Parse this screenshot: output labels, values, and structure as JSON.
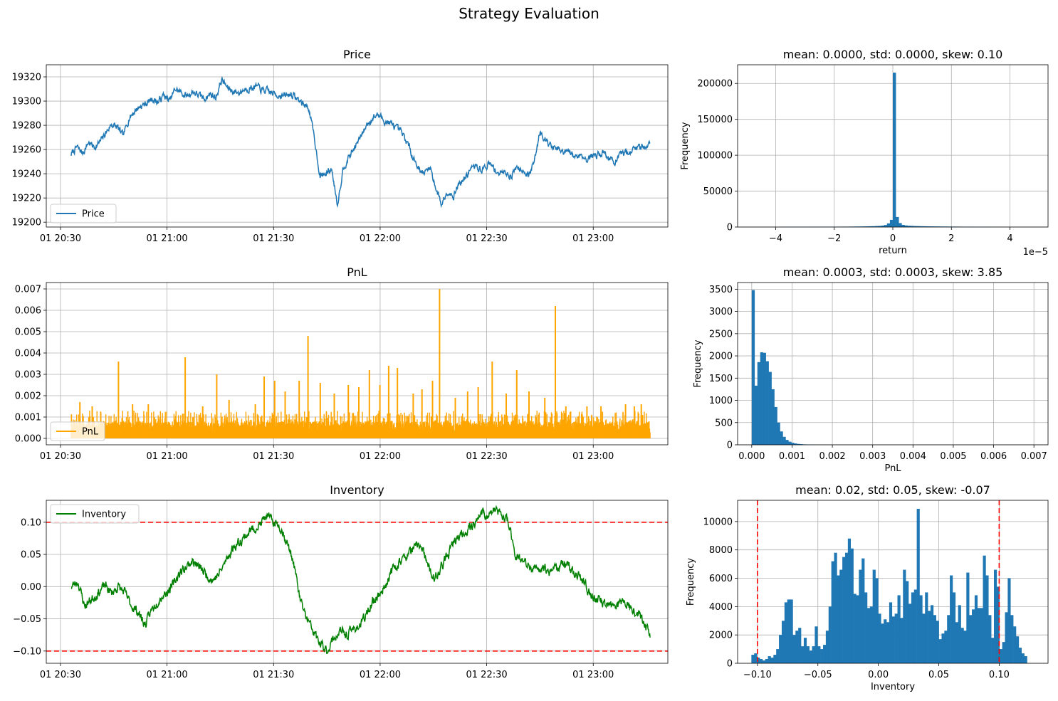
{
  "figure": {
    "title": "Strategy Evaluation"
  },
  "colors": {
    "price": "#1f77b4",
    "pnl": "#ffa500",
    "inventory": "#008000",
    "hist": "#1f77b4",
    "limit": "#ff0000",
    "grid": "#b0b0b0"
  },
  "chart_data": [
    {
      "id": "price",
      "type": "line",
      "title": "Price",
      "legend": {
        "label": "Price",
        "loc": "lower-left"
      },
      "x_start": "01 20:33",
      "x_end": "01 23:16",
      "x_range": [
        "01 20:26",
        "01 23:21"
      ],
      "x_ticks": [
        "01 20:30",
        "01 21:00",
        "01 21:30",
        "01 22:00",
        "01 22:30",
        "01 23:00"
      ],
      "ylim": [
        19196,
        19330
      ],
      "y_ticks": [
        "19200",
        "19220",
        "19240",
        "19260",
        "19280",
        "19300",
        "19320"
      ],
      "grid": true,
      "profile": [
        [
          0,
          19256
        ],
        [
          1,
          19262
        ],
        [
          2,
          19257
        ],
        [
          3,
          19266
        ],
        [
          4,
          19262
        ],
        [
          5,
          19266
        ],
        [
          6,
          19274
        ],
        [
          7,
          19281
        ],
        [
          8,
          19278
        ],
        [
          9,
          19271
        ],
        [
          10,
          19286
        ],
        [
          11,
          19292
        ],
        [
          12,
          19296
        ],
        [
          13,
          19298
        ],
        [
          14,
          19302
        ],
        [
          15,
          19299
        ],
        [
          16,
          19305
        ],
        [
          17,
          19300
        ],
        [
          18,
          19310
        ],
        [
          19,
          19307
        ],
        [
          20,
          19304
        ],
        [
          21,
          19308
        ],
        [
          22,
          19305
        ],
        [
          23,
          19302
        ],
        [
          24,
          19306
        ],
        [
          25,
          19303
        ],
        [
          26,
          19318
        ],
        [
          27,
          19311
        ],
        [
          28,
          19308
        ],
        [
          29,
          19307
        ],
        [
          30,
          19310
        ],
        [
          31,
          19311
        ],
        [
          32,
          19312
        ],
        [
          33,
          19309
        ],
        [
          34,
          19308
        ],
        [
          35,
          19306
        ],
        [
          36,
          19305
        ],
        [
          37,
          19304
        ],
        [
          38,
          19306
        ],
        [
          39,
          19302
        ],
        [
          40,
          19298
        ],
        [
          41,
          19295
        ],
        [
          42,
          19270
        ],
        [
          43,
          19238
        ],
        [
          44,
          19240
        ],
        [
          45,
          19244
        ],
        [
          46,
          19215
        ],
        [
          47,
          19245
        ],
        [
          48,
          19254
        ],
        [
          49,
          19262
        ],
        [
          50,
          19270
        ],
        [
          51,
          19280
        ],
        [
          52,
          19286
        ],
        [
          53,
          19289
        ],
        [
          54,
          19284
        ],
        [
          55,
          19282
        ],
        [
          56,
          19278
        ],
        [
          57,
          19274
        ],
        [
          58,
          19266
        ],
        [
          59,
          19255
        ],
        [
          60,
          19245
        ],
        [
          61,
          19240
        ],
        [
          62,
          19246
        ],
        [
          63,
          19228
        ],
        [
          64,
          19215
        ],
        [
          65,
          19226
        ],
        [
          66,
          19222
        ],
        [
          67,
          19232
        ],
        [
          68,
          19236
        ],
        [
          69,
          19244
        ],
        [
          70,
          19246
        ],
        [
          71,
          19243
        ],
        [
          72,
          19248
        ],
        [
          73,
          19245
        ],
        [
          74,
          19240
        ],
        [
          75,
          19242
        ],
        [
          76,
          19238
        ],
        [
          77,
          19246
        ],
        [
          78,
          19244
        ],
        [
          79,
          19238
        ],
        [
          80,
          19250
        ],
        [
          81,
          19276
        ],
        [
          82,
          19268
        ],
        [
          83,
          19262
        ],
        [
          84,
          19260
        ],
        [
          85,
          19257
        ],
        [
          86,
          19258
        ],
        [
          87,
          19254
        ],
        [
          88,
          19256
        ],
        [
          89,
          19252
        ],
        [
          90,
          19255
        ],
        [
          91,
          19256
        ],
        [
          92,
          19258
        ],
        [
          93,
          19252
        ],
        [
          94,
          19250
        ],
        [
          95,
          19255
        ],
        [
          96,
          19258
        ],
        [
          97,
          19260
        ],
        [
          98,
          19262
        ],
        [
          99,
          19263
        ],
        [
          100,
          19265
        ]
      ]
    },
    {
      "id": "return_hist",
      "type": "bar",
      "title": "mean: 0.0000, std: 0.0000, skew: 0.10",
      "xlabel": "return",
      "ylabel": "Frequency",
      "x_offset_text": "1e−5",
      "xlim": [
        -5.3,
        5.3
      ],
      "x_ticks": [
        "−4",
        "−2",
        "0",
        "2",
        "4"
      ],
      "ylim": [
        0,
        226000
      ],
      "y_ticks": [
        "0",
        "50000",
        "100000",
        "150000",
        "200000"
      ],
      "grid": true,
      "bin_range": [
        -5.0,
        5.0
      ],
      "values": [
        50,
        50,
        50,
        50,
        50,
        50,
        50,
        50,
        50,
        50,
        100,
        200,
        300,
        300,
        300,
        350,
        350,
        350,
        350,
        350,
        400,
        400,
        400,
        400,
        400,
        450,
        450,
        500,
        500,
        500,
        500,
        500,
        550,
        550,
        550,
        600,
        650,
        700,
        750,
        800,
        900,
        1000,
        1100,
        1200,
        1400,
        1600,
        2000,
        2800,
        5000,
        10000,
        215000,
        14000,
        5500,
        3000,
        2200,
        1800,
        1600,
        1400,
        1300,
        1200,
        1100,
        1000,
        950,
        900,
        850,
        800,
        750,
        700,
        700,
        650,
        600,
        600,
        550,
        500,
        500,
        450,
        450,
        400,
        400,
        350,
        350,
        300,
        300,
        250,
        250,
        200,
        200,
        150,
        150,
        100,
        100,
        80,
        60,
        40,
        30,
        20,
        10,
        10,
        10,
        10
      ]
    },
    {
      "id": "pnl",
      "type": "line",
      "title": "PnL",
      "legend": {
        "label": "PnL",
        "loc": "lower-left"
      },
      "x_start": "01 20:33",
      "x_end": "01 23:16",
      "x_range": [
        "01 20:26",
        "01 23:21"
      ],
      "x_ticks": [
        "01 20:30",
        "01 21:00",
        "01 21:30",
        "01 22:00",
        "01 22:30",
        "01 23:00"
      ],
      "ylim": [
        -0.0003,
        0.0073
      ],
      "y_ticks": [
        "0.000",
        "0.001",
        "0.002",
        "0.003",
        "0.004",
        "0.005",
        "0.006",
        "0.007"
      ],
      "grid": true,
      "spikes": [
        [
          5,
          0.0017
        ],
        [
          12,
          0.0015
        ],
        [
          27,
          0.0036
        ],
        [
          35,
          0.0016
        ],
        [
          44,
          0.0016
        ],
        [
          65,
          0.0038
        ],
        [
          75,
          0.0015
        ],
        [
          83,
          0.003
        ],
        [
          90,
          0.0018
        ],
        [
          105,
          0.0016
        ],
        [
          110,
          0.0029
        ],
        [
          116,
          0.0027
        ],
        [
          122,
          0.0022
        ],
        [
          130,
          0.0027
        ],
        [
          135,
          0.0048
        ],
        [
          142,
          0.0026
        ],
        [
          150,
          0.0021
        ],
        [
          158,
          0.0025
        ],
        [
          164,
          0.0024
        ],
        [
          170,
          0.0032
        ],
        [
          176,
          0.0025
        ],
        [
          181,
          0.0034
        ],
        [
          186,
          0.0033
        ],
        [
          195,
          0.0021
        ],
        [
          200,
          0.0023
        ],
        [
          206,
          0.0027
        ],
        [
          210,
          0.007
        ],
        [
          219,
          0.0019
        ],
        [
          226,
          0.0022
        ],
        [
          232,
          0.0024
        ],
        [
          240,
          0.0036
        ],
        [
          248,
          0.0021
        ],
        [
          254,
          0.0032
        ],
        [
          261,
          0.0022
        ],
        [
          270,
          0.0019
        ],
        [
          276,
          0.0062
        ],
        [
          282,
          0.0015
        ],
        [
          294,
          0.0015
        ],
        [
          302,
          0.0015
        ],
        [
          316,
          0.0016
        ],
        [
          321,
          0.0015
        ],
        [
          325,
          0.0016
        ]
      ]
    },
    {
      "id": "pnl_hist",
      "type": "bar",
      "title": "mean: 0.0003, std: 0.0003, skew: 3.85",
      "xlabel": "PnL",
      "ylabel": "Frequency",
      "xlim": [
        -0.00035,
        0.00735
      ],
      "x_ticks": [
        "0.000",
        "0.001",
        "0.002",
        "0.003",
        "0.004",
        "0.005",
        "0.006",
        "0.007"
      ],
      "ylim": [
        0,
        3650
      ],
      "y_ticks": [
        "0",
        "500",
        "1000",
        "1500",
        "2000",
        "2500",
        "3000",
        "3500"
      ],
      "grid": true,
      "bin_range": [
        0.0,
        0.007
      ],
      "values": [
        3480,
        1330,
        1860,
        2080,
        2070,
        1880,
        1640,
        1250,
        850,
        500,
        300,
        180,
        110,
        70,
        45,
        30,
        20,
        15,
        10,
        8,
        6,
        5,
        4,
        3,
        3,
        2,
        2,
        2,
        1,
        1,
        1,
        1,
        1,
        1,
        1,
        1,
        1,
        1,
        1,
        1,
        1,
        1,
        1,
        1,
        1,
        1,
        1,
        1,
        1,
        1,
        1,
        1,
        1,
        1,
        1,
        1,
        1,
        1,
        1,
        1,
        1,
        1,
        1,
        1,
        1,
        1,
        1,
        1,
        1,
        1,
        1,
        1,
        1,
        1,
        1,
        1,
        1,
        1,
        1,
        1,
        1,
        1,
        1,
        1,
        1,
        1,
        1,
        1,
        1,
        1,
        1,
        1,
        1,
        1,
        1,
        1,
        1,
        1,
        1,
        1
      ]
    },
    {
      "id": "inventory",
      "type": "line",
      "title": "Inventory",
      "legend": {
        "label": "Inventory",
        "loc": "upper-left"
      },
      "x_start": "01 20:33",
      "x_end": "01 23:16",
      "x_range": [
        "01 20:26",
        "01 23:21"
      ],
      "x_ticks": [
        "01 20:30",
        "01 21:00",
        "01 21:30",
        "01 22:00",
        "01 22:30",
        "01 23:00"
      ],
      "ylim": [
        -0.119,
        0.134
      ],
      "y_ticks": [
        "−0.10",
        "−0.05",
        "0.00",
        "0.05",
        "0.10"
      ],
      "grid": true,
      "limits": [
        -0.1,
        0.1
      ],
      "profile": [
        [
          0,
          0.0
        ],
        [
          1,
          0.008
        ],
        [
          2,
          -0.03
        ],
        [
          3,
          -0.02
        ],
        [
          4,
          -0.01
        ],
        [
          5,
          0.002
        ],
        [
          6,
          -0.01
        ],
        [
          7,
          0.0
        ],
        [
          8,
          -0.01
        ],
        [
          9,
          -0.03
        ],
        [
          10,
          -0.04
        ],
        [
          11,
          -0.06
        ],
        [
          12,
          -0.035
        ],
        [
          13,
          -0.02
        ],
        [
          14,
          -0.01
        ],
        [
          15,
          0.0
        ],
        [
          16,
          0.02
        ],
        [
          17,
          0.03
        ],
        [
          18,
          0.04
        ],
        [
          19,
          0.03
        ],
        [
          20,
          0.02
        ],
        [
          21,
          0.01
        ],
        [
          22,
          0.02
        ],
        [
          23,
          0.04
        ],
        [
          24,
          0.06
        ],
        [
          25,
          0.07
        ],
        [
          26,
          0.08
        ],
        [
          27,
          0.09
        ],
        [
          28,
          0.095
        ],
        [
          29,
          0.11
        ],
        [
          30,
          0.1
        ],
        [
          31,
          0.095
        ],
        [
          32,
          0.07
        ],
        [
          33,
          0.04
        ],
        [
          34,
          -0.02
        ],
        [
          35,
          -0.05
        ],
        [
          36,
          -0.07
        ],
        [
          37,
          -0.09
        ],
        [
          38,
          -0.1
        ],
        [
          39,
          -0.08
        ],
        [
          40,
          -0.07
        ],
        [
          41,
          -0.075
        ],
        [
          42,
          -0.065
        ],
        [
          43,
          -0.06
        ],
        [
          44,
          -0.04
        ],
        [
          45,
          -0.02
        ],
        [
          46,
          -0.01
        ],
        [
          47,
          0.01
        ],
        [
          48,
          0.03
        ],
        [
          49,
          0.04
        ],
        [
          50,
          0.05
        ],
        [
          51,
          0.06
        ],
        [
          52,
          0.065
        ],
        [
          53,
          0.03
        ],
        [
          54,
          0.01
        ],
        [
          55,
          0.03
        ],
        [
          56,
          0.05
        ],
        [
          57,
          0.07
        ],
        [
          58,
          0.08
        ],
        [
          59,
          0.09
        ],
        [
          60,
          0.1
        ],
        [
          61,
          0.115
        ],
        [
          62,
          0.11
        ],
        [
          63,
          0.12
        ],
        [
          64,
          0.11
        ],
        [
          65,
          0.1
        ],
        [
          66,
          0.05
        ],
        [
          67,
          0.04
        ],
        [
          68,
          0.03
        ],
        [
          69,
          0.025
        ],
        [
          70,
          0.03
        ],
        [
          71,
          0.025
        ],
        [
          72,
          0.03
        ],
        [
          73,
          0.035
        ],
        [
          74,
          0.03
        ],
        [
          75,
          0.02
        ],
        [
          76,
          0.01
        ],
        [
          77,
          -0.01
        ],
        [
          78,
          -0.02
        ],
        [
          79,
          -0.025
        ],
        [
          80,
          -0.03
        ],
        [
          81,
          -0.03
        ],
        [
          82,
          -0.02
        ],
        [
          83,
          -0.03
        ],
        [
          84,
          -0.04
        ],
        [
          85,
          -0.05
        ],
        [
          86,
          -0.075
        ]
      ]
    },
    {
      "id": "inventory_hist",
      "type": "bar",
      "title": "mean: 0.02, std: 0.05, skew: -0.07",
      "xlabel": "Inventory",
      "ylabel": "Frequency",
      "xlim": [
        -0.1164,
        0.1404
      ],
      "x_ticks": [
        "−0.10",
        "−0.05",
        "0.00",
        "0.05",
        "0.10"
      ],
      "ylim": [
        0,
        11500
      ],
      "y_ticks": [
        "0",
        "2000",
        "4000",
        "6000",
        "8000",
        "10000"
      ],
      "grid": true,
      "limits": [
        -0.1,
        0.1
      ],
      "bin_range": [
        -0.105,
        0.123
      ],
      "values": [
        600,
        700,
        400,
        300,
        200,
        300,
        500,
        400,
        600,
        1000,
        2000,
        3000,
        4300,
        4500,
        4500,
        2000,
        2300,
        2500,
        1200,
        1800,
        1200,
        900,
        1200,
        2600,
        1200,
        1000,
        1300,
        2300,
        4000,
        7200,
        7800,
        6200,
        6600,
        7500,
        7800,
        8800,
        8100,
        4900,
        4800,
        6600,
        7400,
        5000,
        3900,
        4000,
        6600,
        6000,
        3500,
        2800,
        3100,
        2900,
        4300,
        3300,
        3500,
        4800,
        3200,
        6600,
        5800,
        4200,
        5000,
        5200,
        10900,
        4800,
        3500,
        5000,
        3700,
        4100,
        3400,
        3000,
        1700,
        2100,
        2300,
        3400,
        6200,
        5000,
        2900,
        4100,
        2500,
        2300,
        6400,
        3400,
        3800,
        4800,
        3900,
        3900,
        7600,
        6200,
        3400,
        1800,
        6600,
        5400,
        1000,
        1500,
        3600,
        6000,
        3400,
        2600,
        1900,
        1100,
        700,
        500
      ]
    }
  ]
}
